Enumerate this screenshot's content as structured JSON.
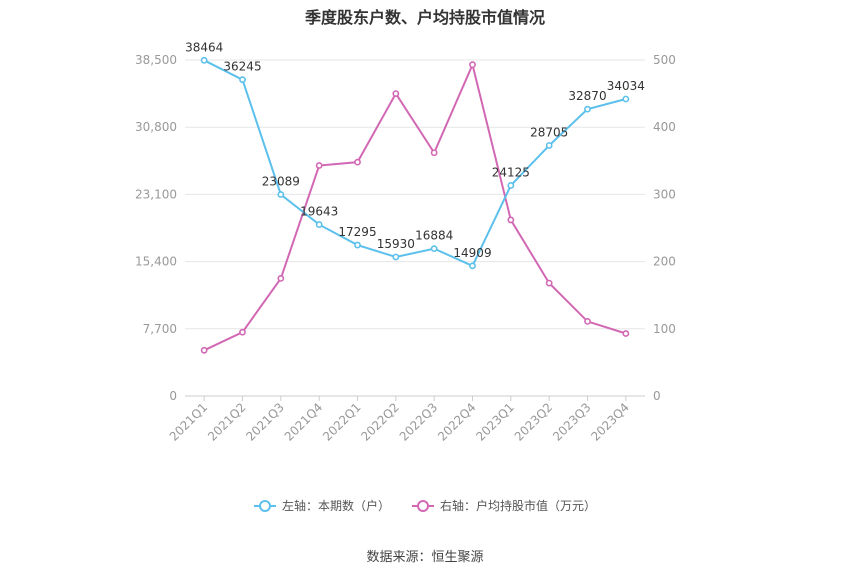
{
  "title": "季度股东户数、户均持股市值情况",
  "source": "数据来源：恒生聚源",
  "colors": {
    "left_series": "#5bc0eb",
    "right_series": "#d268b4",
    "grid": "#e6e6e6",
    "axis_text": "#999999"
  },
  "legend": [
    {
      "label": "左轴：本期数（户）",
      "color": "#5bc0eb"
    },
    {
      "label": "右轴：户均持股市值（万元）",
      "color": "#d268b4"
    }
  ],
  "chart_data": {
    "type": "line",
    "categories": [
      "2021Q1",
      "2021Q2",
      "2021Q3",
      "2021Q4",
      "2022Q1",
      "2022Q2",
      "2022Q3",
      "2022Q4",
      "2023Q1",
      "2023Q2",
      "2023Q3",
      "2023Q4"
    ],
    "y_left": {
      "ticks": [
        "0",
        "7,700",
        "15,400",
        "23,100",
        "30,800",
        "38,500"
      ],
      "lim": [
        0,
        38500
      ]
    },
    "y_right": {
      "ticks": [
        "0",
        "100",
        "200",
        "300",
        "400",
        "500"
      ],
      "lim": [
        0,
        500
      ]
    },
    "series": [
      {
        "name": "左轴：本期数（户）",
        "axis": "left",
        "values": [
          38464,
          36245,
          23089,
          19643,
          17295,
          15930,
          16884,
          14909,
          24125,
          28705,
          32870,
          34034
        ],
        "labels": [
          "38464",
          "36245",
          "23089",
          "19643",
          "17295",
          "15930",
          "16884",
          "14909",
          "24125",
          "28705",
          "32870",
          "34034"
        ]
      },
      {
        "name": "右轴：户均持股市值（万元）",
        "axis": "right",
        "values": [
          68,
          95,
          175,
          343,
          348,
          450,
          362,
          493,
          262,
          168,
          111,
          93
        ]
      }
    ],
    "grid": true,
    "legend_position": "bottom"
  }
}
